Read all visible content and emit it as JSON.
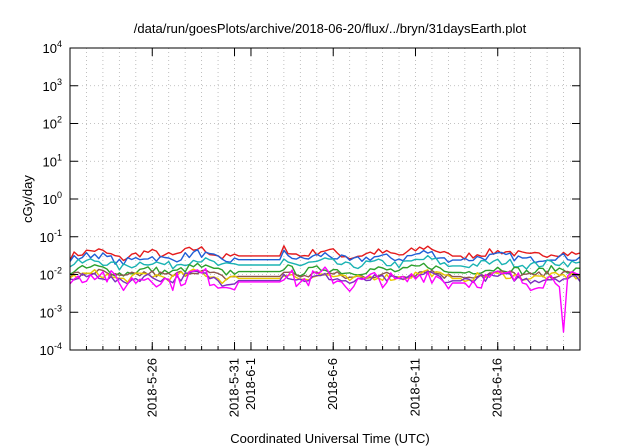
{
  "chart_data": {
    "type": "line",
    "title": "/data/run/goesPlots/archive/2018-06-20/flux/../bryn/31daysEarth.plot",
    "xlabel": "Coordinated Universal Time (UTC)",
    "ylabel": "cGy/day",
    "yscale": "log",
    "ylim": [
      0.0001,
      10000
    ],
    "xlim": [
      "2018-05-21",
      "2018-06-21"
    ],
    "grid": true,
    "y_ticks": [
      {
        "value": 0.0001,
        "base": "10",
        "exp": "-4"
      },
      {
        "value": 0.001,
        "base": "10",
        "exp": "-3"
      },
      {
        "value": 0.01,
        "base": "10",
        "exp": "-2"
      },
      {
        "value": 0.1,
        "base": "10",
        "exp": "-1"
      },
      {
        "value": 1,
        "base": "10",
        "exp": "0"
      },
      {
        "value": 10,
        "base": "10",
        "exp": "1"
      },
      {
        "value": 100,
        "base": "10",
        "exp": "2"
      },
      {
        "value": 1000,
        "base": "10",
        "exp": "3"
      },
      {
        "value": 10000,
        "base": "10",
        "exp": "4"
      }
    ],
    "x_ticks": [
      {
        "date": "2018-05-26",
        "label": "2018-5-26"
      },
      {
        "date": "2018-05-31",
        "label": "2018-5-31"
      },
      {
        "date": "2018-06-01",
        "label": "2018-6-1"
      },
      {
        "date": "2018-06-06",
        "label": "2018-6-6"
      },
      {
        "date": "2018-06-11",
        "label": "2018-6-11"
      },
      {
        "date": "2018-06-16",
        "label": "2018-6-16"
      }
    ],
    "gaps": [
      [
        "2018-05-31",
        "2018-06-03"
      ],
      [
        "2018-06-13",
        "2018-06-14"
      ]
    ],
    "series": [
      {
        "color": "#e41a1c",
        "values": [
          0.03,
          0.045,
          0.025,
          0.04,
          0.03,
          0.05,
          0.028,
          0.035,
          0.06,
          0.03,
          0.045,
          0.028,
          0.04,
          0.032,
          0.055,
          0.026,
          0.035,
          0.042,
          0.03,
          0.038,
          0.034
        ]
      },
      {
        "color": "#1f5fd6",
        "values": [
          0.025,
          0.035,
          0.02,
          0.03,
          0.024,
          0.038,
          0.022,
          0.028,
          0.045,
          0.024,
          0.034,
          0.022,
          0.03,
          0.026,
          0.04,
          0.021,
          0.028,
          0.032,
          0.024,
          0.03,
          0.027
        ]
      },
      {
        "color": "#1ab3b3",
        "values": [
          0.018,
          0.024,
          0.015,
          0.022,
          0.017,
          0.026,
          0.016,
          0.02,
          0.03,
          0.017,
          0.023,
          0.016,
          0.021,
          0.018,
          0.027,
          0.015,
          0.019,
          0.022,
          0.017,
          0.021,
          0.019
        ]
      },
      {
        "color": "#2ca02c",
        "values": [
          0.012,
          0.016,
          0.01,
          0.014,
          0.011,
          0.017,
          0.011,
          0.013,
          0.019,
          0.011,
          0.015,
          0.011,
          0.014,
          0.012,
          0.018,
          0.01,
          0.013,
          0.015,
          0.011,
          0.014,
          0.013
        ]
      },
      {
        "color": "#8c564b",
        "values": [
          0.009,
          0.012,
          0.008,
          0.011,
          0.009,
          0.013,
          0.008,
          0.01,
          0.014,
          0.009,
          0.011,
          0.008,
          0.01,
          0.009,
          0.013,
          0.008,
          0.01,
          0.011,
          0.009,
          0.01,
          0.01
        ]
      },
      {
        "color": "#e8c800",
        "values": [
          0.008,
          0.011,
          0.007,
          0.01,
          0.008,
          0.012,
          0.007,
          0.009,
          0.013,
          0.008,
          0.01,
          0.007,
          0.009,
          0.008,
          0.012,
          0.007,
          0.009,
          0.01,
          0.008,
          0.009,
          0.009
        ]
      },
      {
        "color": "#7b2fbf",
        "values": [
          0.007,
          0.01,
          0.006,
          0.009,
          0.007,
          0.011,
          0.006,
          0.008,
          0.012,
          0.007,
          0.009,
          0.006,
          0.008,
          0.007,
          0.011,
          0.006,
          0.008,
          0.009,
          0.007,
          0.008,
          0.008
        ]
      },
      {
        "color": "#ff00ff",
        "values": [
          0.006,
          0.012,
          0.005,
          0.009,
          0.006,
          0.011,
          0.005,
          0.008,
          0.013,
          0.006,
          0.01,
          0.005,
          0.008,
          0.006,
          0.011,
          0.005,
          0.007,
          0.009,
          0.006,
          0.008,
          0.007
        ]
      }
    ],
    "min_spike": {
      "date": "2018-06-20",
      "value": 0.0003
    }
  }
}
